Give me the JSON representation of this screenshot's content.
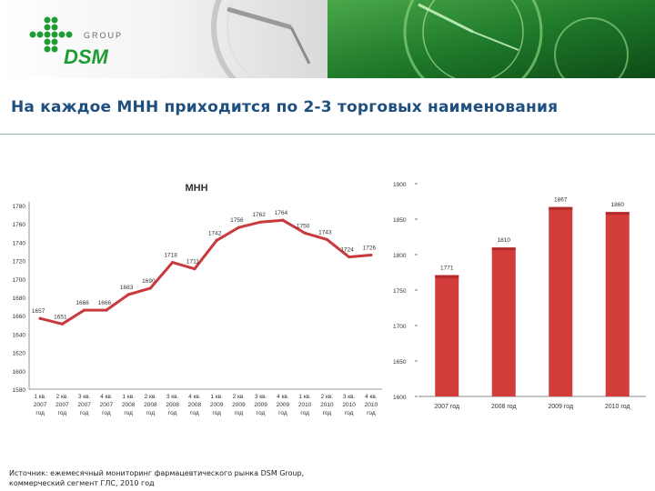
{
  "brand": {
    "logo_top": "GROUP",
    "logo_main": "DSM"
  },
  "title": "На каждое МНН приходится по 2-3 торговых наименования",
  "colors": {
    "accent_green": "#1e9b32",
    "line_red": "#c93a3e",
    "bar_red": "#d23c3b",
    "title_blue": "#1f4f7e"
  },
  "chart_data": [
    {
      "type": "line",
      "title": "МНН",
      "ylim": [
        1580,
        1780
      ],
      "yticks": [
        1580,
        1600,
        1620,
        1640,
        1660,
        1680,
        1700,
        1720,
        1740,
        1760,
        1780
      ],
      "categories": [
        [
          "1 кв.",
          "2007",
          "год"
        ],
        [
          "2 кв.",
          "2007",
          "год"
        ],
        [
          "3 кв.",
          "2007",
          "год"
        ],
        [
          "4 кв.",
          "2007",
          "год"
        ],
        [
          "1 кв.",
          "2008",
          "год"
        ],
        [
          "2 кв.",
          "2008",
          "год"
        ],
        [
          "3 кв.",
          "2008",
          "год"
        ],
        [
          "4 кв.",
          "2008",
          "год"
        ],
        [
          "1 кв.",
          "2009",
          "год"
        ],
        [
          "2 кв.",
          "2009",
          "год"
        ],
        [
          "3 кв.",
          "2009",
          "год"
        ],
        [
          "4 кв.",
          "2009",
          "год"
        ],
        [
          "1 кв.",
          "2010",
          "год"
        ],
        [
          "2 кв.",
          "2010",
          "год"
        ],
        [
          "3 кв.",
          "2010",
          "год"
        ],
        [
          "4 кв.",
          "2010",
          "год"
        ]
      ],
      "values": [
        1657,
        1651,
        1666,
        1666,
        1683,
        1690,
        1718,
        1711,
        1742,
        1756,
        1762,
        1764,
        1750,
        1743,
        1724,
        1726
      ],
      "grid": false
    },
    {
      "type": "bar",
      "ylim": [
        1600,
        1900
      ],
      "yticks": [
        1600,
        1650,
        1700,
        1750,
        1800,
        1850,
        1900
      ],
      "categories": [
        "2007 год",
        "2008 год",
        "2009 год",
        "2010 год"
      ],
      "values": [
        1771,
        1810,
        1867,
        1860
      ],
      "grid": false
    }
  ],
  "source": {
    "line1": "Источник: ежемесячный мониторинг фармацевтического рынка DSM Group,",
    "line2": "коммерческий сегмент ГЛС, 2010 год"
  }
}
